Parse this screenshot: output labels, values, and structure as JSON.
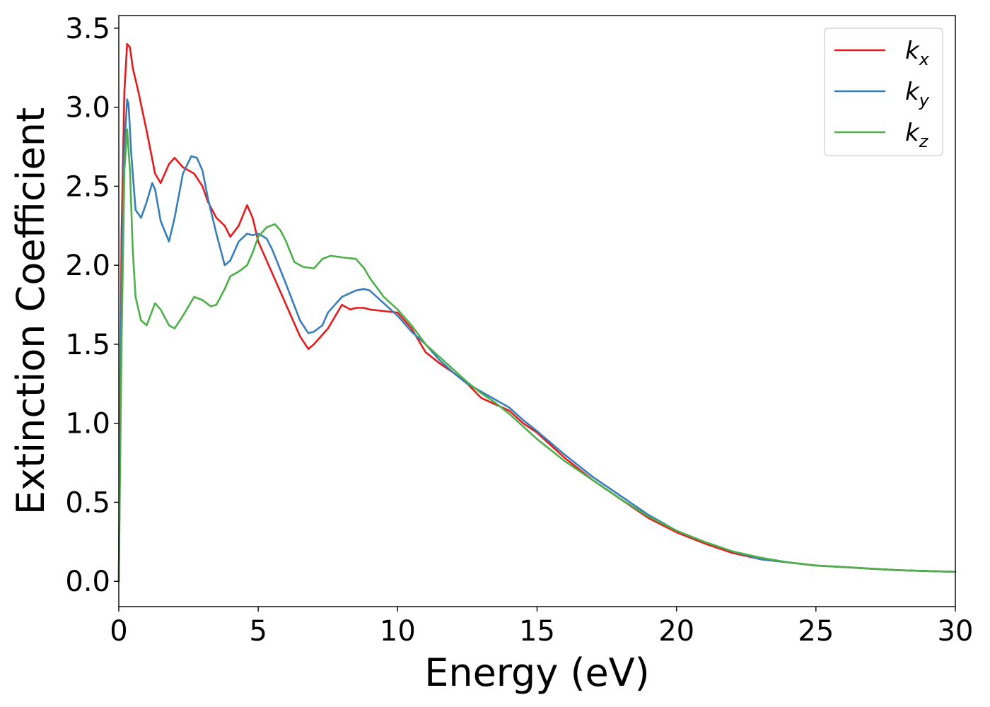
{
  "chart_data": {
    "type": "line",
    "xlabel": "Energy (eV)",
    "ylabel": "Extinction Coefficient",
    "xlim": [
      0,
      30
    ],
    "ylim": [
      -0.16,
      3.58
    ],
    "xticks": [
      0,
      5,
      10,
      15,
      20,
      25,
      30
    ],
    "xtick_labels": [
      "0",
      "5",
      "10",
      "15",
      "20",
      "25",
      "30"
    ],
    "yticks": [
      0.0,
      0.5,
      1.0,
      1.5,
      2.0,
      2.5,
      3.0,
      3.5
    ],
    "ytick_labels": [
      "0.0",
      "0.5",
      "1.0",
      "1.5",
      "2.0",
      "2.5",
      "3.0",
      "3.5"
    ],
    "grid": false,
    "legend": {
      "position": "top-right"
    },
    "series": [
      {
        "name": "k_x",
        "base": "k",
        "sub": "x",
        "color": "#e41a1c",
        "x": [
          0,
          0.1,
          0.2,
          0.3,
          0.4,
          0.5,
          0.7,
          1.0,
          1.3,
          1.5,
          1.8,
          2.0,
          2.3,
          2.7,
          3.0,
          3.2,
          3.5,
          3.8,
          4.0,
          4.3,
          4.6,
          4.8,
          5.0,
          5.5,
          6.0,
          6.5,
          6.8,
          7.0,
          7.5,
          8.0,
          8.3,
          8.5,
          8.8,
          9.0,
          9.5,
          10.0,
          10.5,
          11.0,
          11.5,
          12.0,
          12.5,
          13.0,
          13.5,
          14.0,
          14.5,
          15.0,
          16.0,
          17.0,
          18.0,
          19.0,
          20.0,
          21.0,
          22.0,
          23.0,
          24.0,
          25.0,
          26.0,
          27.0,
          28.0,
          29.0,
          30.0
        ],
        "y": [
          0.0,
          2.2,
          3.1,
          3.4,
          3.38,
          3.25,
          3.1,
          2.85,
          2.58,
          2.52,
          2.64,
          2.68,
          2.62,
          2.58,
          2.5,
          2.4,
          2.3,
          2.25,
          2.18,
          2.25,
          2.38,
          2.3,
          2.15,
          1.95,
          1.75,
          1.55,
          1.47,
          1.5,
          1.6,
          1.75,
          1.72,
          1.73,
          1.73,
          1.72,
          1.71,
          1.7,
          1.6,
          1.45,
          1.38,
          1.32,
          1.25,
          1.16,
          1.12,
          1.08,
          1.0,
          0.94,
          0.78,
          0.64,
          0.52,
          0.4,
          0.31,
          0.24,
          0.18,
          0.14,
          0.12,
          0.1,
          0.09,
          0.08,
          0.07,
          0.065,
          0.06
        ]
      },
      {
        "name": "k_y",
        "base": "k",
        "sub": "y",
        "color": "#377eb8",
        "x": [
          0,
          0.1,
          0.2,
          0.3,
          0.35,
          0.45,
          0.6,
          0.8,
          1.0,
          1.2,
          1.3,
          1.5,
          1.8,
          2.0,
          2.3,
          2.6,
          2.8,
          3.0,
          3.2,
          3.5,
          3.8,
          4.0,
          4.3,
          4.6,
          4.8,
          5.0,
          5.3,
          5.5,
          6.0,
          6.5,
          6.8,
          7.0,
          7.3,
          7.5,
          8.0,
          8.5,
          8.8,
          9.0,
          9.5,
          10.0,
          10.5,
          11.0,
          11.5,
          12.0,
          12.5,
          13.0,
          13.5,
          14.0,
          14.5,
          15.0,
          16.0,
          17.0,
          18.0,
          19.0,
          20.0,
          21.0,
          22.0,
          23.0,
          24.0,
          25.0,
          26.0,
          27.0,
          28.0,
          29.0,
          30.0
        ],
        "y": [
          0.0,
          1.9,
          2.75,
          3.05,
          3.02,
          2.7,
          2.35,
          2.3,
          2.4,
          2.52,
          2.48,
          2.28,
          2.15,
          2.3,
          2.58,
          2.69,
          2.68,
          2.6,
          2.42,
          2.2,
          2.0,
          2.03,
          2.15,
          2.2,
          2.19,
          2.2,
          2.17,
          2.1,
          1.88,
          1.65,
          1.57,
          1.58,
          1.62,
          1.7,
          1.8,
          1.84,
          1.85,
          1.84,
          1.76,
          1.68,
          1.58,
          1.5,
          1.4,
          1.32,
          1.25,
          1.2,
          1.15,
          1.1,
          1.02,
          0.95,
          0.8,
          0.66,
          0.54,
          0.42,
          0.32,
          0.25,
          0.19,
          0.14,
          0.12,
          0.1,
          0.09,
          0.08,
          0.07,
          0.065,
          0.06
        ]
      },
      {
        "name": "k_z",
        "base": "k",
        "sub": "z",
        "color": "#4daf4a",
        "x": [
          0,
          0.1,
          0.2,
          0.3,
          0.4,
          0.5,
          0.6,
          0.8,
          1.0,
          1.3,
          1.5,
          1.8,
          2.0,
          2.3,
          2.7,
          3.0,
          3.3,
          3.5,
          3.8,
          4.0,
          4.3,
          4.6,
          4.8,
          5.0,
          5.3,
          5.6,
          5.8,
          6.0,
          6.3,
          6.6,
          7.0,
          7.3,
          7.6,
          8.0,
          8.5,
          8.8,
          9.0,
          9.5,
          10.0,
          10.5,
          11.0,
          11.5,
          12.0,
          12.5,
          13.0,
          13.5,
          14.0,
          14.5,
          15.0,
          16.0,
          17.0,
          18.0,
          19.0,
          20.0,
          21.0,
          22.0,
          23.0,
          24.0,
          25.0,
          26.0,
          27.0,
          28.0,
          29.0,
          30.0
        ],
        "y": [
          0.0,
          1.5,
          2.6,
          2.86,
          2.6,
          2.1,
          1.8,
          1.65,
          1.62,
          1.76,
          1.72,
          1.62,
          1.6,
          1.68,
          1.8,
          1.78,
          1.74,
          1.75,
          1.85,
          1.93,
          1.96,
          2.0,
          2.08,
          2.18,
          2.24,
          2.26,
          2.22,
          2.15,
          2.02,
          1.99,
          1.98,
          2.04,
          2.06,
          2.05,
          2.04,
          1.98,
          1.92,
          1.8,
          1.72,
          1.62,
          1.5,
          1.42,
          1.34,
          1.26,
          1.19,
          1.13,
          1.06,
          0.98,
          0.9,
          0.76,
          0.64,
          0.52,
          0.41,
          0.32,
          0.25,
          0.19,
          0.15,
          0.12,
          0.1,
          0.09,
          0.08,
          0.07,
          0.065,
          0.06
        ]
      }
    ]
  }
}
